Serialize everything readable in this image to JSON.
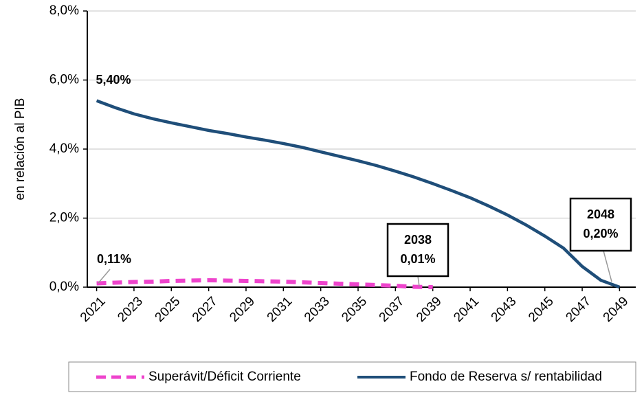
{
  "chart_data": {
    "type": "line",
    "y_label": "en relación al PIB",
    "x": [
      2021,
      2022,
      2023,
      2024,
      2025,
      2026,
      2027,
      2028,
      2029,
      2030,
      2031,
      2032,
      2033,
      2034,
      2035,
      2036,
      2037,
      2038,
      2039,
      2040,
      2041,
      2042,
      2043,
      2044,
      2045,
      2046,
      2047,
      2048,
      2049
    ],
    "series": [
      {
        "name": "Superávit/Déficit Corriente",
        "color": "#ee44cc",
        "dashed": true,
        "values": [
          0.11,
          0.13,
          0.15,
          0.16,
          0.18,
          0.19,
          0.2,
          0.19,
          0.18,
          0.17,
          0.16,
          0.14,
          0.12,
          0.1,
          0.08,
          0.06,
          0.04,
          0.01,
          0.0,
          null,
          null,
          null,
          null,
          null,
          null,
          null,
          null,
          null,
          null
        ]
      },
      {
        "name": "Fondo de Reserva s/ rentabilidad",
        "color": "#1f4e79",
        "dashed": false,
        "values": [
          5.4,
          5.2,
          5.02,
          4.88,
          4.76,
          4.65,
          4.54,
          4.45,
          4.35,
          4.26,
          4.16,
          4.05,
          3.92,
          3.79,
          3.66,
          3.52,
          3.36,
          3.19,
          3.0,
          2.8,
          2.59,
          2.35,
          2.09,
          1.8,
          1.48,
          1.13,
          0.6,
          0.2,
          0.0
        ]
      }
    ],
    "xlim": [
      2020.5,
      2049.5
    ],
    "xticks": [
      2021,
      2023,
      2025,
      2027,
      2029,
      2031,
      2033,
      2035,
      2037,
      2039,
      2041,
      2043,
      2045,
      2047,
      2049
    ],
    "ylim": [
      0,
      8
    ],
    "yticks": [
      {
        "value": 0,
        "label": "0,0%"
      },
      {
        "value": 2,
        "label": "2,0%"
      },
      {
        "value": 4,
        "label": "4,0%"
      },
      {
        "value": 6,
        "label": "6,0%"
      },
      {
        "value": 8,
        "label": "8,0%"
      }
    ],
    "grid": true,
    "legend": "bottom",
    "annotations": [
      {
        "lines": [
          "5,40%"
        ]
      },
      {
        "lines": [
          "0,11%"
        ]
      },
      {
        "lines": [
          "2038",
          "0,01%"
        ]
      },
      {
        "lines": [
          "2048",
          "0,20%"
        ]
      }
    ]
  }
}
